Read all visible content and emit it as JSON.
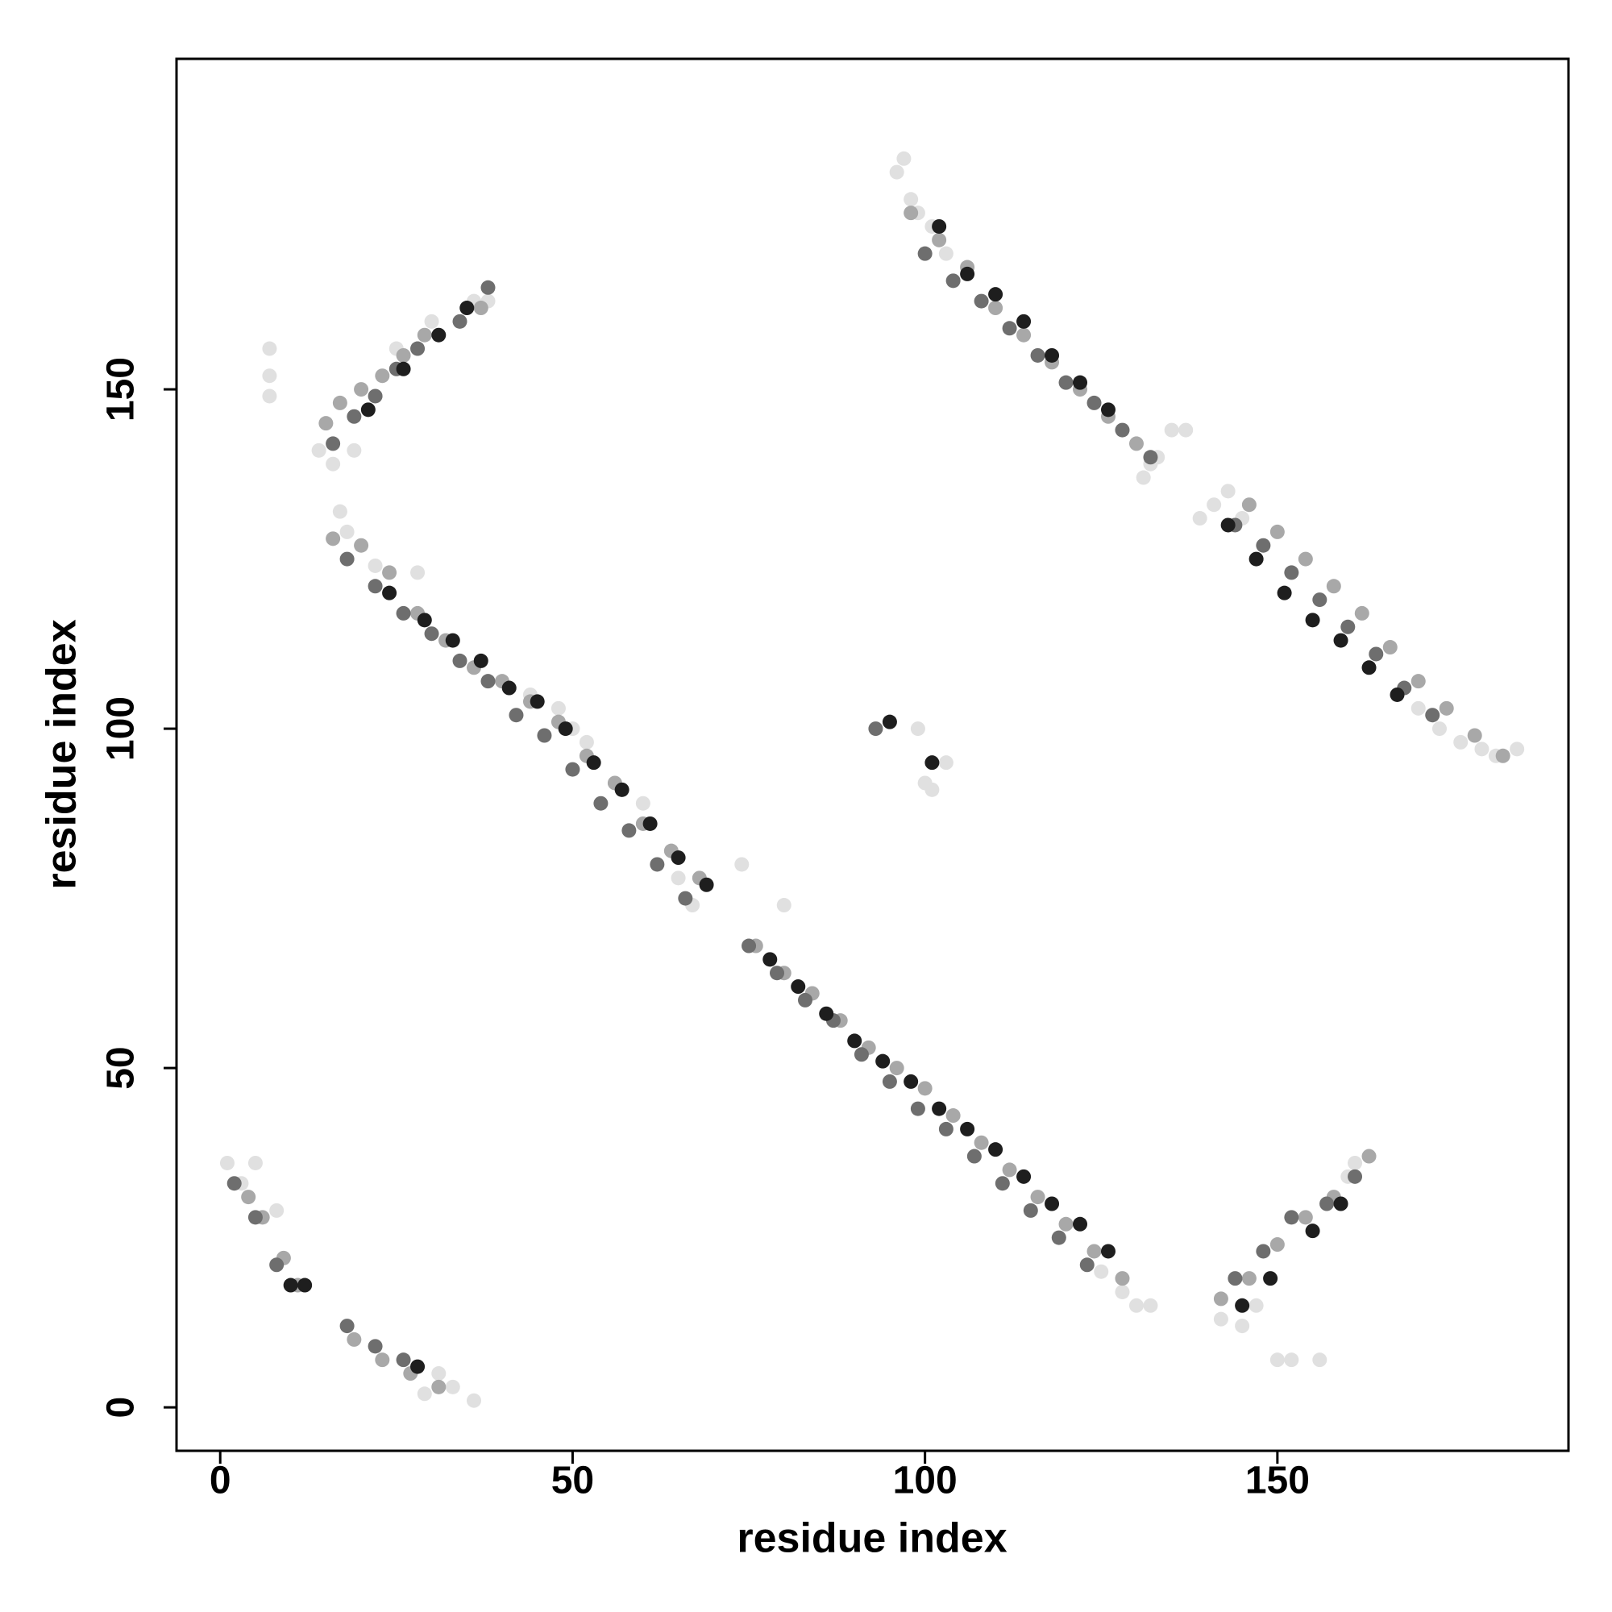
{
  "chart_data": {
    "type": "scatter",
    "x_label": "residue index",
    "y_label": "residue index",
    "xlim": [
      -6.2,
      191.3
    ],
    "ylim": [
      -6.4,
      198.7
    ],
    "xticks": [
      0,
      50,
      100,
      150
    ],
    "yticks": [
      0,
      50,
      100,
      150
    ],
    "grid": false,
    "series": [
      {
        "color": "#e0e0e0",
        "x": [
          7,
          7,
          7,
          14,
          16,
          19,
          17,
          22,
          25,
          30,
          36,
          38,
          1,
          3,
          5,
          8,
          31,
          33,
          36,
          29,
          96,
          97,
          98,
          99,
          101,
          103,
          131,
          132,
          133,
          135,
          137,
          139,
          141,
          143,
          145,
          150,
          152,
          156,
          170,
          173,
          176,
          179,
          181,
          184,
          142,
          145,
          147,
          60,
          65,
          67,
          74,
          80,
          99,
          100,
          101,
          103,
          48,
          50,
          52,
          18,
          28,
          44,
          125,
          128,
          130,
          132,
          160,
          161
        ],
        "values": [
          149,
          152,
          156,
          141,
          139,
          141,
          132,
          124,
          156,
          160,
          163,
          163,
          36,
          33,
          36,
          29,
          5,
          3,
          1,
          2,
          182,
          184,
          178,
          176,
          174,
          170,
          137,
          139,
          140,
          144,
          144,
          131,
          133,
          135,
          131,
          7,
          7,
          7,
          103,
          100,
          98,
          97,
          96,
          97,
          13,
          12,
          15,
          89,
          78,
          74,
          80,
          74,
          100,
          92,
          91,
          95,
          103,
          100,
          98,
          129,
          123,
          105,
          20,
          17,
          15,
          15,
          34,
          36
        ]
      },
      {
        "color": "#a8a8a8",
        "x": [
          15,
          17,
          20,
          23,
          26,
          29,
          16,
          20,
          24,
          28,
          32,
          36,
          40,
          44,
          48,
          52,
          56,
          60,
          64,
          68,
          76,
          80,
          84,
          88,
          92,
          96,
          100,
          104,
          108,
          112,
          116,
          120,
          124,
          128,
          98,
          102,
          106,
          110,
          114,
          118,
          122,
          126,
          130,
          146,
          150,
          154,
          158,
          162,
          166,
          170,
          174,
          178,
          182,
          4,
          6,
          9,
          11,
          19,
          23,
          27,
          31,
          142,
          146,
          150,
          154,
          158,
          163,
          37
        ],
        "values": [
          145,
          148,
          150,
          152,
          155,
          158,
          128,
          127,
          123,
          117,
          113,
          109,
          107,
          104,
          101,
          96,
          92,
          86,
          82,
          78,
          68,
          64,
          61,
          57,
          53,
          50,
          47,
          43,
          39,
          35,
          31,
          27,
          23,
          19,
          176,
          172,
          168,
          162,
          158,
          154,
          150,
          146,
          142,
          133,
          129,
          125,
          121,
          117,
          112,
          107,
          103,
          99,
          96,
          31,
          28,
          22,
          18,
          10,
          7,
          5,
          3,
          16,
          19,
          24,
          28,
          31,
          37,
          162
        ]
      },
      {
        "color": "#6e6e6e",
        "x": [
          16,
          19,
          22,
          25,
          28,
          34,
          38,
          18,
          22,
          26,
          30,
          34,
          38,
          42,
          46,
          50,
          54,
          58,
          62,
          66,
          75,
          79,
          83,
          87,
          91,
          95,
          99,
          103,
          107,
          111,
          115,
          119,
          123,
          100,
          104,
          108,
          112,
          116,
          120,
          124,
          128,
          132,
          144,
          148,
          152,
          156,
          160,
          164,
          168,
          172,
          2,
          5,
          8,
          18,
          22,
          26,
          144,
          148,
          152,
          157,
          161,
          93
        ],
        "values": [
          142,
          146,
          149,
          153,
          156,
          160,
          165,
          125,
          121,
          117,
          114,
          110,
          107,
          102,
          99,
          94,
          89,
          85,
          80,
          75,
          68,
          64,
          60,
          57,
          52,
          48,
          44,
          41,
          37,
          33,
          29,
          25,
          21,
          170,
          166,
          163,
          159,
          155,
          151,
          148,
          144,
          140,
          130,
          127,
          123,
          119,
          115,
          111,
          106,
          102,
          33,
          28,
          21,
          12,
          9,
          7,
          19,
          23,
          28,
          30,
          34,
          100
        ]
      },
      {
        "color": "#1e1e1e",
        "x": [
          21,
          26,
          31,
          35,
          24,
          29,
          33,
          37,
          41,
          45,
          49,
          53,
          57,
          61,
          65,
          69,
          78,
          82,
          86,
          90,
          94,
          98,
          102,
          106,
          110,
          114,
          118,
          122,
          126,
          102,
          106,
          110,
          114,
          118,
          122,
          126,
          143,
          147,
          151,
          155,
          159,
          163,
          167,
          10,
          12,
          28,
          145,
          149,
          155,
          159,
          95,
          101
        ],
        "values": [
          147,
          153,
          158,
          162,
          120,
          116,
          113,
          110,
          106,
          104,
          100,
          95,
          91,
          86,
          81,
          77,
          66,
          62,
          58,
          54,
          51,
          48,
          44,
          41,
          38,
          34,
          30,
          27,
          23,
          174,
          167,
          164,
          160,
          155,
          151,
          147,
          130,
          125,
          120,
          116,
          113,
          109,
          105,
          18,
          18,
          6,
          15,
          19,
          26,
          30,
          101,
          95
        ]
      }
    ]
  }
}
